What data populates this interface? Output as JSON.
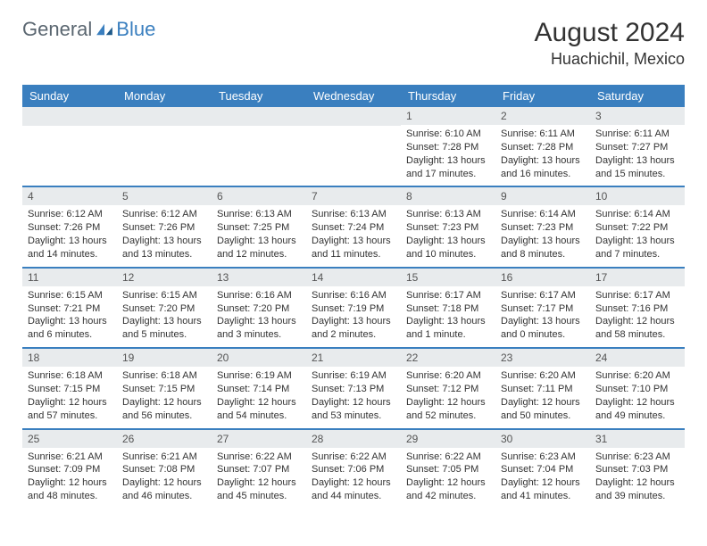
{
  "logo": {
    "general": "General",
    "blue": "Blue"
  },
  "title": "August 2024",
  "location": "Huachichil, Mexico",
  "colors": {
    "header_bg": "#3a7fbf",
    "header_text": "#ffffff",
    "daynum_bg": "#e8ebed",
    "row_border": "#3a7fbf",
    "text": "#333333",
    "logo_gray": "#5a6670",
    "logo_blue": "#3a7fbf"
  },
  "weekdays": [
    "Sunday",
    "Monday",
    "Tuesday",
    "Wednesday",
    "Thursday",
    "Friday",
    "Saturday"
  ],
  "weeks": [
    [
      {
        "empty": true
      },
      {
        "empty": true
      },
      {
        "empty": true
      },
      {
        "empty": true
      },
      {
        "day": "1",
        "sunrise": "Sunrise: 6:10 AM",
        "sunset": "Sunset: 7:28 PM",
        "daylight": "Daylight: 13 hours and 17 minutes."
      },
      {
        "day": "2",
        "sunrise": "Sunrise: 6:11 AM",
        "sunset": "Sunset: 7:28 PM",
        "daylight": "Daylight: 13 hours and 16 minutes."
      },
      {
        "day": "3",
        "sunrise": "Sunrise: 6:11 AM",
        "sunset": "Sunset: 7:27 PM",
        "daylight": "Daylight: 13 hours and 15 minutes."
      }
    ],
    [
      {
        "day": "4",
        "sunrise": "Sunrise: 6:12 AM",
        "sunset": "Sunset: 7:26 PM",
        "daylight": "Daylight: 13 hours and 14 minutes."
      },
      {
        "day": "5",
        "sunrise": "Sunrise: 6:12 AM",
        "sunset": "Sunset: 7:26 PM",
        "daylight": "Daylight: 13 hours and 13 minutes."
      },
      {
        "day": "6",
        "sunrise": "Sunrise: 6:13 AM",
        "sunset": "Sunset: 7:25 PM",
        "daylight": "Daylight: 13 hours and 12 minutes."
      },
      {
        "day": "7",
        "sunrise": "Sunrise: 6:13 AM",
        "sunset": "Sunset: 7:24 PM",
        "daylight": "Daylight: 13 hours and 11 minutes."
      },
      {
        "day": "8",
        "sunrise": "Sunrise: 6:13 AM",
        "sunset": "Sunset: 7:23 PM",
        "daylight": "Daylight: 13 hours and 10 minutes."
      },
      {
        "day": "9",
        "sunrise": "Sunrise: 6:14 AM",
        "sunset": "Sunset: 7:23 PM",
        "daylight": "Daylight: 13 hours and 8 minutes."
      },
      {
        "day": "10",
        "sunrise": "Sunrise: 6:14 AM",
        "sunset": "Sunset: 7:22 PM",
        "daylight": "Daylight: 13 hours and 7 minutes."
      }
    ],
    [
      {
        "day": "11",
        "sunrise": "Sunrise: 6:15 AM",
        "sunset": "Sunset: 7:21 PM",
        "daylight": "Daylight: 13 hours and 6 minutes."
      },
      {
        "day": "12",
        "sunrise": "Sunrise: 6:15 AM",
        "sunset": "Sunset: 7:20 PM",
        "daylight": "Daylight: 13 hours and 5 minutes."
      },
      {
        "day": "13",
        "sunrise": "Sunrise: 6:16 AM",
        "sunset": "Sunset: 7:20 PM",
        "daylight": "Daylight: 13 hours and 3 minutes."
      },
      {
        "day": "14",
        "sunrise": "Sunrise: 6:16 AM",
        "sunset": "Sunset: 7:19 PM",
        "daylight": "Daylight: 13 hours and 2 minutes."
      },
      {
        "day": "15",
        "sunrise": "Sunrise: 6:17 AM",
        "sunset": "Sunset: 7:18 PM",
        "daylight": "Daylight: 13 hours and 1 minute."
      },
      {
        "day": "16",
        "sunrise": "Sunrise: 6:17 AM",
        "sunset": "Sunset: 7:17 PM",
        "daylight": "Daylight: 13 hours and 0 minutes."
      },
      {
        "day": "17",
        "sunrise": "Sunrise: 6:17 AM",
        "sunset": "Sunset: 7:16 PM",
        "daylight": "Daylight: 12 hours and 58 minutes."
      }
    ],
    [
      {
        "day": "18",
        "sunrise": "Sunrise: 6:18 AM",
        "sunset": "Sunset: 7:15 PM",
        "daylight": "Daylight: 12 hours and 57 minutes."
      },
      {
        "day": "19",
        "sunrise": "Sunrise: 6:18 AM",
        "sunset": "Sunset: 7:15 PM",
        "daylight": "Daylight: 12 hours and 56 minutes."
      },
      {
        "day": "20",
        "sunrise": "Sunrise: 6:19 AM",
        "sunset": "Sunset: 7:14 PM",
        "daylight": "Daylight: 12 hours and 54 minutes."
      },
      {
        "day": "21",
        "sunrise": "Sunrise: 6:19 AM",
        "sunset": "Sunset: 7:13 PM",
        "daylight": "Daylight: 12 hours and 53 minutes."
      },
      {
        "day": "22",
        "sunrise": "Sunrise: 6:20 AM",
        "sunset": "Sunset: 7:12 PM",
        "daylight": "Daylight: 12 hours and 52 minutes."
      },
      {
        "day": "23",
        "sunrise": "Sunrise: 6:20 AM",
        "sunset": "Sunset: 7:11 PM",
        "daylight": "Daylight: 12 hours and 50 minutes."
      },
      {
        "day": "24",
        "sunrise": "Sunrise: 6:20 AM",
        "sunset": "Sunset: 7:10 PM",
        "daylight": "Daylight: 12 hours and 49 minutes."
      }
    ],
    [
      {
        "day": "25",
        "sunrise": "Sunrise: 6:21 AM",
        "sunset": "Sunset: 7:09 PM",
        "daylight": "Daylight: 12 hours and 48 minutes."
      },
      {
        "day": "26",
        "sunrise": "Sunrise: 6:21 AM",
        "sunset": "Sunset: 7:08 PM",
        "daylight": "Daylight: 12 hours and 46 minutes."
      },
      {
        "day": "27",
        "sunrise": "Sunrise: 6:22 AM",
        "sunset": "Sunset: 7:07 PM",
        "daylight": "Daylight: 12 hours and 45 minutes."
      },
      {
        "day": "28",
        "sunrise": "Sunrise: 6:22 AM",
        "sunset": "Sunset: 7:06 PM",
        "daylight": "Daylight: 12 hours and 44 minutes."
      },
      {
        "day": "29",
        "sunrise": "Sunrise: 6:22 AM",
        "sunset": "Sunset: 7:05 PM",
        "daylight": "Daylight: 12 hours and 42 minutes."
      },
      {
        "day": "30",
        "sunrise": "Sunrise: 6:23 AM",
        "sunset": "Sunset: 7:04 PM",
        "daylight": "Daylight: 12 hours and 41 minutes."
      },
      {
        "day": "31",
        "sunrise": "Sunrise: 6:23 AM",
        "sunset": "Sunset: 7:03 PM",
        "daylight": "Daylight: 12 hours and 39 minutes."
      }
    ]
  ]
}
